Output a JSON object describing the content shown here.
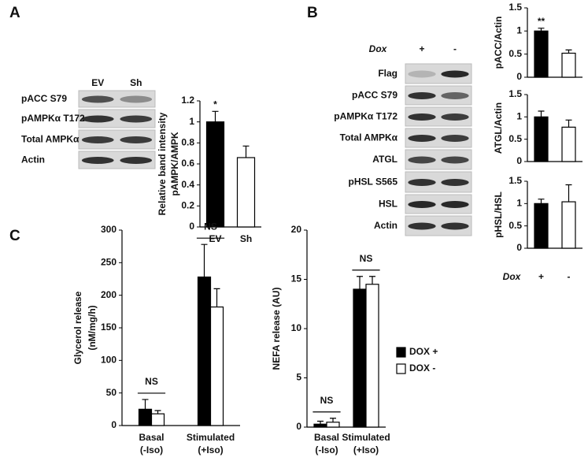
{
  "panels": [
    "A",
    "B",
    "C"
  ],
  "blots": [
    {
      "lanes": [
        "EV",
        "Sh"
      ],
      "rows": [
        "pACC S79",
        "pAMPKα T172",
        "Total AMPKα",
        "Actin"
      ]
    },
    {
      "header": "Dox",
      "lanes": [
        "+",
        "-"
      ],
      "rows": [
        "Flag",
        "pACC S79",
        "pAMPKα T172",
        "Total AMPKα",
        "ATGL",
        "pHSL S565",
        "HSL",
        "Actin"
      ]
    }
  ],
  "chart_data": [
    {
      "type": "bar",
      "ylabel": [
        "Relative band intensity",
        "pAMPK/AMPK"
      ],
      "categories": [
        "EV",
        "Sh"
      ],
      "values": [
        1.0,
        0.66
      ],
      "errors": [
        0.1,
        0.11
      ],
      "colors": [
        "#000000",
        "#ffffff"
      ],
      "annotations": [
        "*",
        null
      ],
      "ylim": [
        0,
        1.2
      ],
      "yticks": [
        0,
        0.2,
        0.4,
        0.6,
        0.8,
        1,
        1.2
      ]
    },
    {
      "type": "bar",
      "ylabel": "pACC/Actin",
      "categories": [
        null,
        null
      ],
      "values": [
        1.0,
        0.52
      ],
      "errors": [
        0.06,
        0.07
      ],
      "colors": [
        "#000000",
        "#ffffff"
      ],
      "annotations": [
        "**",
        null
      ],
      "ylim": [
        0,
        1.5
      ],
      "yticks": [
        0,
        0.5,
        1,
        1.5
      ]
    },
    {
      "type": "bar",
      "ylabel": "ATGL/Actin",
      "categories": [
        null,
        null
      ],
      "values": [
        1.0,
        0.77
      ],
      "errors": [
        0.13,
        0.16
      ],
      "colors": [
        "#000000",
        "#ffffff"
      ],
      "ylim": [
        0,
        1.5
      ],
      "yticks": [
        0,
        0.5,
        1,
        1.5
      ]
    },
    {
      "type": "bar",
      "ylabel": "pHSL/HSL",
      "xlabel": "Dox",
      "categories": [
        "+",
        "-"
      ],
      "values": [
        1.0,
        1.04
      ],
      "errors": [
        0.1,
        0.38
      ],
      "colors": [
        "#000000",
        "#ffffff"
      ],
      "ylim": [
        0,
        1.5
      ],
      "yticks": [
        0,
        0.5,
        1,
        1.5
      ]
    },
    {
      "type": "bar",
      "ylabel": [
        "Glycerol release",
        "(nM/mg/h)"
      ],
      "categories": [
        [
          "Basal",
          "(-Iso)"
        ],
        [
          "Stimulated",
          "(+Iso)"
        ]
      ],
      "series": [
        {
          "name": "DOX +",
          "color": "#000000",
          "values": [
            25,
            228
          ],
          "errors": [
            15,
            50
          ]
        },
        {
          "name": "DOX -",
          "color": "#ffffff",
          "values": [
            18,
            182
          ],
          "errors": [
            5,
            28
          ]
        }
      ],
      "annotations": [
        "NS",
        "NS"
      ],
      "ylim": [
        0,
        300
      ],
      "yticks": [
        0,
        50,
        100,
        150,
        200,
        250,
        300
      ]
    },
    {
      "type": "bar",
      "ylabel": "NEFA release (AU)",
      "categories": [
        [
          "Basal",
          "(-Iso)"
        ],
        [
          "Stimulated",
          "(+Iso)"
        ]
      ],
      "series": [
        {
          "name": "DOX +",
          "color": "#000000",
          "values": [
            0.3,
            14.0
          ],
          "errors": [
            0.3,
            1.3
          ]
        },
        {
          "name": "DOX -",
          "color": "#ffffff",
          "values": [
            0.5,
            14.5
          ],
          "errors": [
            0.4,
            0.8
          ]
        }
      ],
      "annotations": [
        "NS",
        "NS"
      ],
      "legend": "right",
      "ylim": [
        0,
        20
      ],
      "yticks": [
        0,
        5,
        10,
        15,
        20
      ]
    }
  ]
}
